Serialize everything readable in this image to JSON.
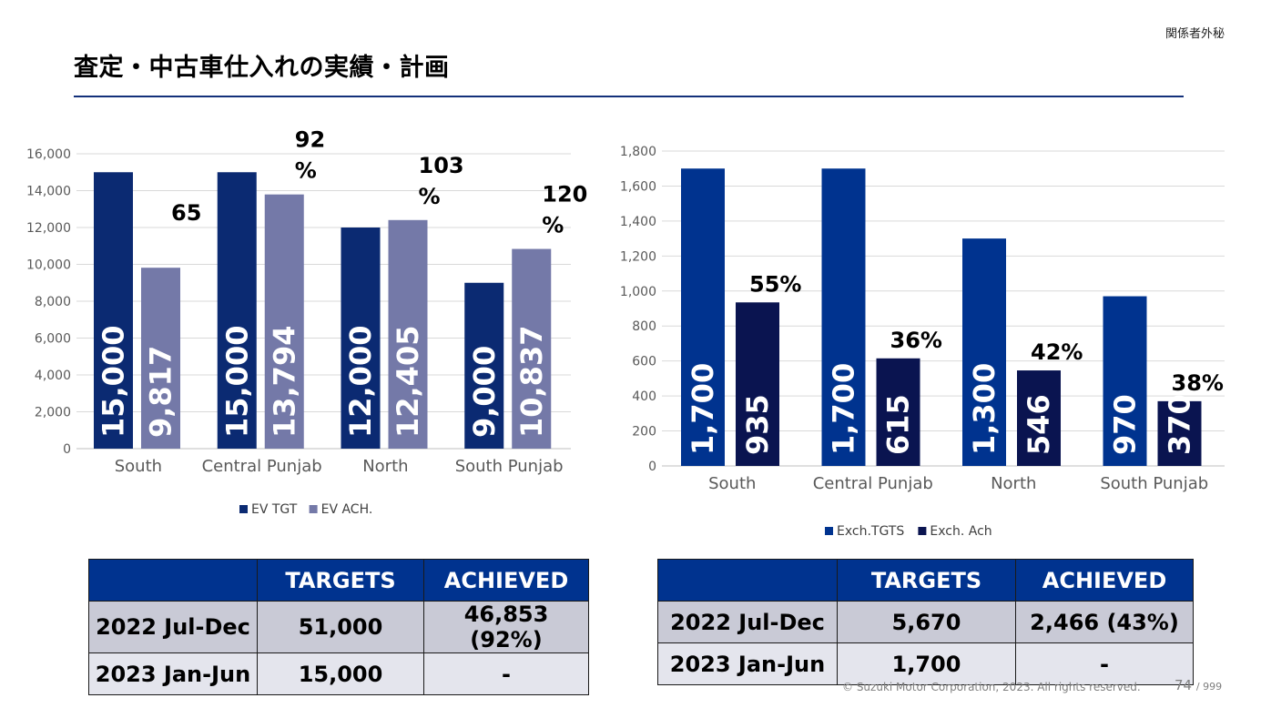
{
  "header": {
    "confidential": "関係者外秘",
    "title": "査定・中古車仕入れの実績・計画"
  },
  "colors": {
    "accent_rule": "#13307a",
    "table_header": "#00338f"
  },
  "chart_data": [
    {
      "type": "bar",
      "categories": [
        "South",
        "Central Punjab",
        "North",
        "South Punjab"
      ],
      "series": [
        {
          "name": "EV TGT",
          "values": [
            15000,
            15000,
            12000,
            9000
          ],
          "color": "#0b2a72",
          "data_labels": [
            "15,000",
            "15,000",
            "12,000",
            "9,000"
          ]
        },
        {
          "name": "EV ACH.",
          "values": [
            9817,
            13794,
            12405,
            10837
          ],
          "color": "#7479a8",
          "data_labels": [
            "9,817",
            "13,794",
            "12,405",
            "10,837"
          ]
        }
      ],
      "annotations": [
        {
          "lines": [
            "65"
          ]
        },
        {
          "lines": [
            "92",
            "%"
          ]
        },
        {
          "lines": [
            "103",
            "%"
          ]
        },
        {
          "lines": [
            "120",
            "%"
          ]
        }
      ],
      "ylim": [
        0,
        16000
      ],
      "yticks": [
        "0",
        "2,000",
        "4,000",
        "6,000",
        "8,000",
        "10,000",
        "12,000",
        "14,000",
        "16,000"
      ],
      "grid": true,
      "legend": "bottom"
    },
    {
      "type": "bar",
      "categories": [
        "South",
        "Central Punjab",
        "North",
        "South Punjab"
      ],
      "series": [
        {
          "name": "Exch.TGTS",
          "values": [
            1700,
            1700,
            1300,
            970
          ],
          "color": "#00338f",
          "data_labels": [
            "1,700",
            "1,700",
            "1,300",
            "970"
          ]
        },
        {
          "name": "Exch. Ach",
          "values": [
            935,
            615,
            546,
            370
          ],
          "color": "#0a1450",
          "data_labels": [
            "935",
            "615",
            "546",
            "370"
          ]
        }
      ],
      "annotations": [
        {
          "lines": [
            "55%"
          ]
        },
        {
          "lines": [
            "36%"
          ]
        },
        {
          "lines": [
            "42%"
          ]
        },
        {
          "lines": [
            "38%"
          ]
        }
      ],
      "ylim": [
        0,
        1800
      ],
      "yticks": [
        "0",
        "200",
        "400",
        "600",
        "800",
        "1,000",
        "1,200",
        "1,400",
        "1,600",
        "1,800"
      ],
      "grid": true,
      "legend": "bottom"
    }
  ],
  "tables": {
    "left": {
      "columns": [
        "",
        "TARGETS",
        "ACHIEVED"
      ],
      "rows": [
        [
          "2022 Jul-Dec",
          "51,000",
          "46,853 (92%)"
        ],
        [
          "2023 Jan-Jun",
          "15,000",
          "-"
        ]
      ]
    },
    "right": {
      "columns": [
        "",
        "TARGETS",
        "ACHIEVED"
      ],
      "rows": [
        [
          "2022 Jul-Dec",
          "5,670",
          "2,466 (43%)"
        ],
        [
          "2023 Jan-Jun",
          "1,700",
          "-"
        ]
      ]
    }
  },
  "footer": {
    "copyright": "© Suzuki Motor Corporation, 2023. All rights reserved.",
    "page": "74",
    "page_total": "/ 999"
  }
}
